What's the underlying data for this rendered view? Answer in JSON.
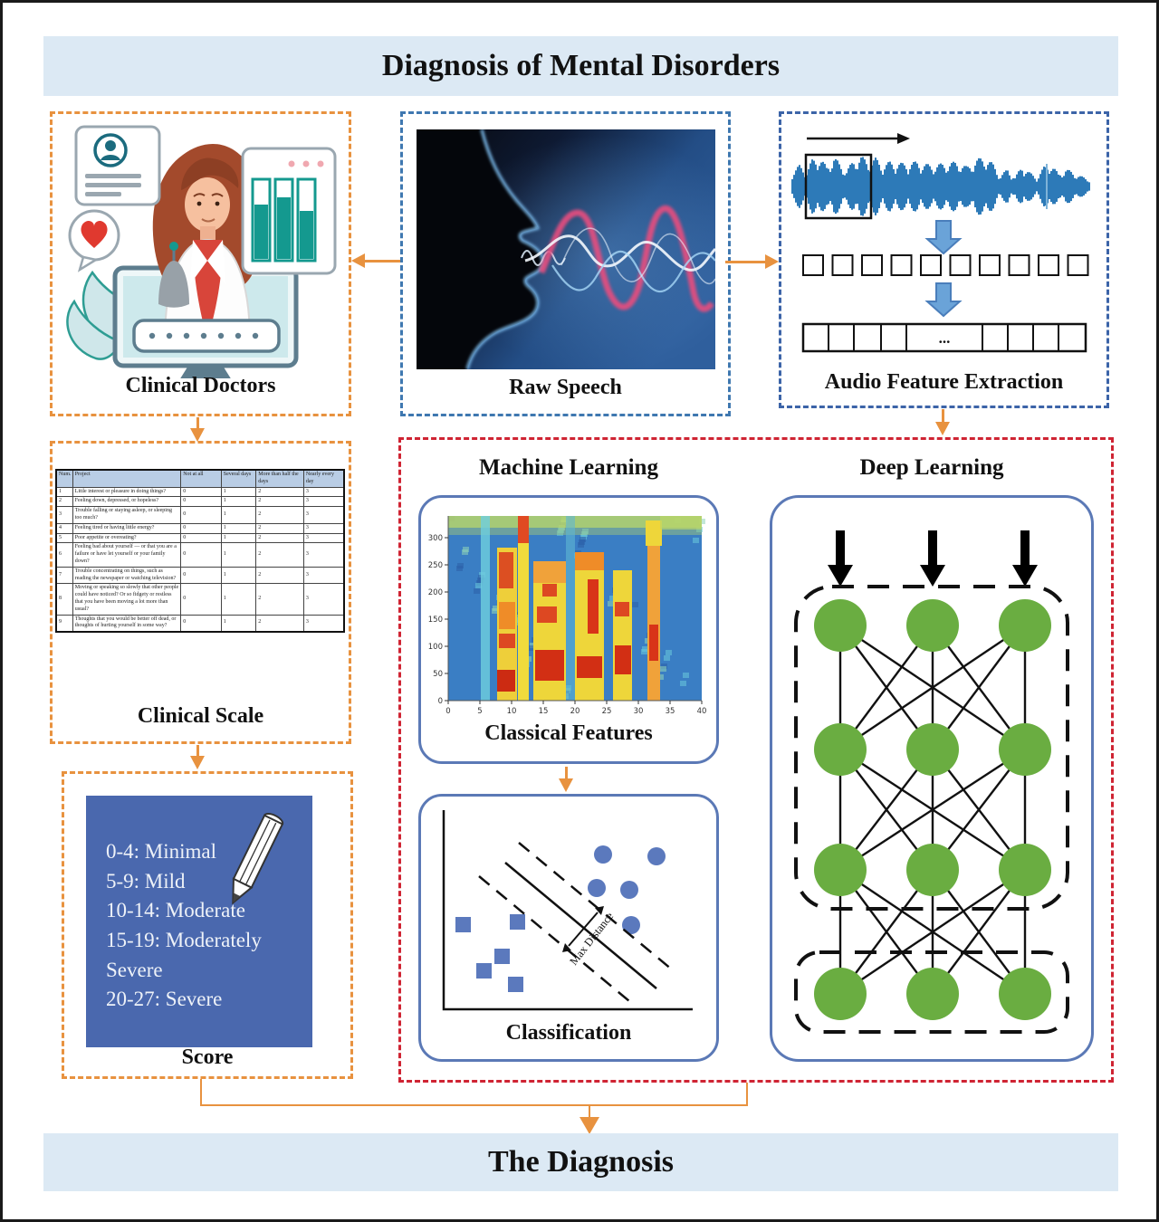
{
  "title": "Diagnosis of Mental Disorders",
  "footer": "The Diagnosis",
  "top_row": {
    "clinical_doctors": {
      "label": "Clinical Doctors"
    },
    "raw_speech": {
      "label": "Raw Speech"
    },
    "audio_feature_extraction": {
      "label": "Audio Feature Extraction",
      "ellipsis": "..."
    }
  },
  "clinical_scale": {
    "label": "Clinical Scale",
    "table": {
      "columns": [
        "Num.",
        "Project",
        "Not at all",
        "Several days",
        "More than half the days",
        "Nearly every day"
      ],
      "rows": [
        [
          "1",
          "Little interest or pleasure in doing things?",
          "0",
          "1",
          "2",
          "3"
        ],
        [
          "2",
          "Feeling down, depressed, or hopeless?",
          "0",
          "1",
          "2",
          "3"
        ],
        [
          "3",
          "Trouble falling or staying asleep, or sleeping too much?",
          "0",
          "1",
          "2",
          "3"
        ],
        [
          "4",
          "Feeling tired or having little energy?",
          "0",
          "1",
          "2",
          "3"
        ],
        [
          "5",
          "Poor appetite or overeating?",
          "0",
          "1",
          "2",
          "3"
        ],
        [
          "6",
          "Feeling bad about yourself — or that you are a failure or have let yourself or your family down?",
          "0",
          "1",
          "2",
          "3"
        ],
        [
          "7",
          "Trouble concentrating on things, such as reading the newspaper or watching television?",
          "0",
          "1",
          "2",
          "3"
        ],
        [
          "8",
          "Moving or speaking so slowly that other people could have noticed? Or so fidgety or restless that you have been moving a lot more than usual?",
          "0",
          "1",
          "2",
          "3"
        ],
        [
          "9",
          "Thoughts that you would be better off dead, or thoughts of hurting yourself in some way?",
          "0",
          "1",
          "2",
          "3"
        ]
      ]
    }
  },
  "score": {
    "label": "Score",
    "lines": [
      "0-4: Minimal",
      "5-9: Mild",
      "10-14: Moderate",
      "15-19: Moderately Severe",
      "20-27: Severe"
    ]
  },
  "machine_learning": {
    "heading": "Machine Learning",
    "classical_features_label": "Classical Features",
    "classification_label": "Classification",
    "max_distance_label": "Max Distance"
  },
  "deep_learning": {
    "heading": "Deep Learning"
  },
  "chart_data": [
    {
      "type": "heatmap",
      "title": "Classical Features (spectrogram)",
      "xticks": [
        0,
        5,
        10,
        15,
        20,
        25,
        30,
        35,
        40
      ],
      "yticks": [
        0,
        50,
        100,
        150,
        200,
        250,
        300
      ],
      "xlim": [
        0,
        40
      ],
      "ylim": [
        0,
        340
      ],
      "grid": false
    },
    {
      "type": "scatter",
      "title": "Classification (SVM max-margin)",
      "series": [
        {
          "name": "squares-class",
          "marker": "square",
          "points": [
            [
              0.08,
              0.43
            ],
            [
              0.3,
              0.44
            ],
            [
              0.24,
              0.27
            ],
            [
              0.16,
              0.2
            ],
            [
              0.29,
              0.13
            ]
          ]
        },
        {
          "name": "circles-class",
          "marker": "circle",
          "points": [
            [
              0.64,
              0.78
            ],
            [
              0.85,
              0.77
            ],
            [
              0.61,
              0.61
            ],
            [
              0.74,
              0.6
            ],
            [
              0.75,
              0.42
            ]
          ]
        }
      ],
      "annotation": "Max Distance",
      "legend": "none"
    }
  ],
  "colors": {
    "banner_bg": "#dce9f4",
    "accent_orange": "#e8923f",
    "dashed_blue": "#3f78b0",
    "dashed_navy": "#3c64a8",
    "dashed_red": "#cf2433",
    "panel_blue": "#5b79b6",
    "score_bg": "#4a68ae",
    "node_green": "#6aad41",
    "waveform_blue": "#2d7ab8",
    "marker_blue": "#5b79bd"
  }
}
